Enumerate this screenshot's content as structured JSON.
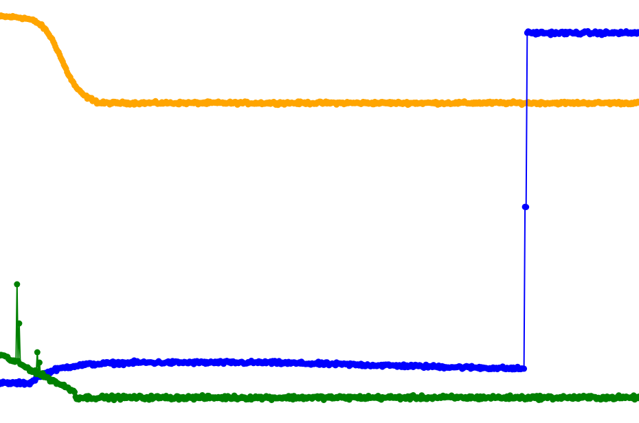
{
  "chart_data": {
    "type": "line",
    "title": "",
    "xlabel": "",
    "ylabel": "",
    "grid": false,
    "axes_visible": false,
    "legend": "none",
    "xlim": [
      0,
      600
    ],
    "ylim": [
      0,
      1
    ],
    "series": [
      {
        "color": "#ffa500",
        "markers": true,
        "segments": [
          {
            "start": 0,
            "end": 90,
            "from": 0.96,
            "to": 0.75,
            "shape": "sigmoid",
            "mid": 58,
            "width": 9
          },
          {
            "start": 90,
            "end": 600,
            "value": 0.75
          }
        ],
        "noise": 0.005
      },
      {
        "color": "#0000ff",
        "markers": true,
        "segments": [
          {
            "start": 0,
            "end": 28,
            "value": 0.07
          },
          {
            "start": 28,
            "end": 120,
            "from": 0.07,
            "to": 0.12,
            "shape": "rise"
          },
          {
            "start": 120,
            "end": 250,
            "value": 0.12
          },
          {
            "start": 250,
            "end": 492,
            "from": 0.12,
            "to": 0.105,
            "shape": "linear"
          },
          {
            "start": 493,
            "end": 494,
            "value": 0.5
          },
          {
            "start": 495,
            "end": 600,
            "value": 0.92
          }
        ],
        "noise": 0.006
      },
      {
        "color": "#008000",
        "markers": true,
        "segments": [
          {
            "start": 0,
            "end": 70,
            "from": 0.14,
            "to": 0.05,
            "shape": "linear"
          },
          {
            "start": 70,
            "end": 600,
            "value": 0.035
          }
        ],
        "spikes": [
          {
            "x": 16,
            "y": 0.31
          },
          {
            "x": 18,
            "y": 0.215
          },
          {
            "x": 20,
            "y": 0.115
          },
          {
            "x": 35,
            "y": 0.145
          },
          {
            "x": 37,
            "y": 0.12
          }
        ],
        "noise": 0.007
      }
    ]
  }
}
